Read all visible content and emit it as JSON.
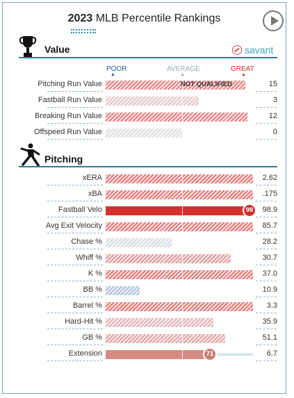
{
  "header": {
    "year": "2023",
    "title_rest": " MLB Percentile Rankings"
  },
  "savant": {
    "label": "savant"
  },
  "scale": {
    "poor": "POOR",
    "average": "AVERAGE",
    "great": "GREAT"
  },
  "colors": {
    "accent": "#2a7d8c",
    "poor": "#2356a8",
    "average": "#9aa9b4",
    "great": "#d22d2d"
  },
  "sections": {
    "value": {
      "title": "Value",
      "icon": "trophy-icon"
    },
    "pitching": {
      "title": "Pitching",
      "icon": "pitcher-icon"
    }
  },
  "value_rows": [
    {
      "label": "Pitching Run Value",
      "value": "15",
      "percentile": 95,
      "status": "NOT QUALIFIED",
      "qualified": false
    },
    {
      "label": "Fastball Run Value",
      "value": "3",
      "percentile": 63,
      "qualified": false
    },
    {
      "label": "Breaking Run Value",
      "value": "12",
      "percentile": 96,
      "qualified": false
    },
    {
      "label": "Offspeed Run Value",
      "value": "0",
      "percentile": 52,
      "qualified": false
    }
  ],
  "pitching_rows": [
    {
      "label": "xERA",
      "value": "2.62",
      "percentile": 100,
      "qualified": false
    },
    {
      "label": "xBA",
      "value": ".175",
      "percentile": 100,
      "qualified": false
    },
    {
      "label": "Fastball Velo",
      "value": "98.9",
      "percentile": 98,
      "qualified": true,
      "circle": "98"
    },
    {
      "label": "Avg Exit Velocity",
      "value": "85.7",
      "percentile": 100,
      "qualified": false
    },
    {
      "label": "Chase %",
      "value": "28.2",
      "percentile": 45,
      "qualified": false
    },
    {
      "label": "Whiff %",
      "value": "30.7",
      "percentile": 85,
      "qualified": false
    },
    {
      "label": "K %",
      "value": "37.0",
      "percentile": 100,
      "qualified": false
    },
    {
      "label": "BB %",
      "value": "10.9",
      "percentile": 23,
      "qualified": false
    },
    {
      "label": "Barrel %",
      "value": "3.3",
      "percentile": 100,
      "qualified": false
    },
    {
      "label": "Hard-Hit %",
      "value": "35.9",
      "percentile": 73,
      "qualified": false
    },
    {
      "label": "GB %",
      "value": "51.1",
      "percentile": 81,
      "qualified": false
    },
    {
      "label": "Extension",
      "value": "6.7",
      "percentile": 71,
      "qualified": true,
      "circle": "71"
    }
  ]
}
